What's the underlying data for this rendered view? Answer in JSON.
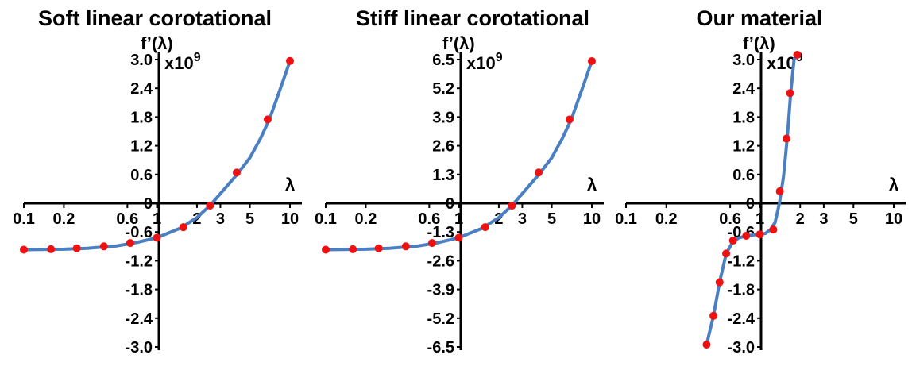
{
  "colors": {
    "curve": "#4a7fc1",
    "points": "#ee1111",
    "axes": "#000000"
  },
  "chart_data": [
    {
      "type": "line",
      "title": "Soft linear corotational",
      "xlabel": "λ",
      "ylabel": "f’(λ)",
      "y_multiplier": "x10",
      "y_multiplier_exp": "9",
      "x_scale": "log",
      "xlim": [
        0.1,
        10
      ],
      "ylim": [
        -3.0,
        3.0
      ],
      "x_ticks": [
        0.1,
        0.2,
        0.6,
        1,
        2,
        3,
        5,
        10
      ],
      "x_tick_labels": [
        "0.1",
        "0.2",
        "0.6",
        "1",
        "2",
        "3",
        "5",
        "10"
      ],
      "y_ticks": [
        3.0,
        2.4,
        1.8,
        1.2,
        0.6,
        0,
        -0.6,
        -1.2,
        -1.8,
        -2.4,
        -3.0
      ],
      "y_tick_labels": [
        "3.0",
        "2.4",
        "1.8",
        "1.2",
        "0.6",
        "0",
        "-0.6",
        "-1.2",
        "-1.8",
        "-2.4",
        "-3.0"
      ],
      "curve_x": [
        0.1,
        0.2,
        0.3,
        0.5,
        0.7,
        1,
        1.5,
        2,
        2.5,
        3,
        4,
        5,
        6,
        7,
        8,
        9,
        10
      ],
      "curve_y": [
        -0.97,
        -0.96,
        -0.94,
        -0.89,
        -0.82,
        -0.72,
        -0.52,
        -0.3,
        -0.05,
        0.2,
        0.6,
        0.95,
        1.35,
        1.75,
        2.2,
        2.6,
        2.97
      ],
      "points": [
        {
          "x": 0.1,
          "y": -0.97
        },
        {
          "x": 0.16,
          "y": -0.96
        },
        {
          "x": 0.25,
          "y": -0.94
        },
        {
          "x": 0.4,
          "y": -0.9
        },
        {
          "x": 0.63,
          "y": -0.83
        },
        {
          "x": 1.0,
          "y": -0.72
        },
        {
          "x": 1.58,
          "y": -0.5
        },
        {
          "x": 2.51,
          "y": -0.05
        },
        {
          "x": 3.98,
          "y": 0.64
        },
        {
          "x": 6.8,
          "y": 1.75
        },
        {
          "x": 10,
          "y": 2.97
        }
      ]
    },
    {
      "type": "line",
      "title": "Stiff linear corotational",
      "xlabel": "λ",
      "ylabel": "f’(λ)",
      "y_multiplier": "x10",
      "y_multiplier_exp": "9",
      "x_scale": "log",
      "xlim": [
        0.1,
        10
      ],
      "ylim": [
        -6.5,
        6.5
      ],
      "x_ticks": [
        0.1,
        0.2,
        0.6,
        1,
        2,
        3,
        5,
        10
      ],
      "x_tick_labels": [
        "0.1",
        "0.2",
        "0.6",
        "1",
        "2",
        "3",
        "5",
        "10"
      ],
      "y_ticks": [
        6.5,
        5.2,
        3.9,
        2.6,
        1.3,
        0,
        -1.3,
        -2.6,
        -3.9,
        -5.2,
        -6.5
      ],
      "y_tick_labels": [
        "6.5",
        "5.2",
        "3.9",
        "2.6",
        "1.3",
        "0",
        "-1.3",
        "-2.6",
        "-3.9",
        "-5.2",
        "-6.5"
      ],
      "curve_x": [
        0.1,
        0.2,
        0.3,
        0.5,
        0.7,
        1,
        1.5,
        2,
        2.5,
        3,
        4,
        5,
        6,
        7,
        8,
        9,
        10
      ],
      "curve_y": [
        -2.1,
        -2.08,
        -2.04,
        -1.93,
        -1.78,
        -1.56,
        -1.13,
        -0.65,
        -0.11,
        0.43,
        1.3,
        2.06,
        2.93,
        3.79,
        4.77,
        5.63,
        6.43
      ],
      "points": [
        {
          "x": 0.1,
          "y": -2.1
        },
        {
          "x": 0.16,
          "y": -2.08
        },
        {
          "x": 0.25,
          "y": -2.04
        },
        {
          "x": 0.4,
          "y": -1.95
        },
        {
          "x": 0.63,
          "y": -1.8
        },
        {
          "x": 1.0,
          "y": -1.56
        },
        {
          "x": 1.58,
          "y": -1.08
        },
        {
          "x": 2.51,
          "y": -0.11
        },
        {
          "x": 3.98,
          "y": 1.39
        },
        {
          "x": 6.8,
          "y": 3.79
        },
        {
          "x": 10,
          "y": 6.43
        }
      ]
    },
    {
      "type": "line",
      "title": "Our material",
      "xlabel": "λ",
      "ylabel": "f’(λ)",
      "y_multiplier": "x10",
      "y_multiplier_exp": "9",
      "x_scale": "log",
      "xlim": [
        0.1,
        10
      ],
      "ylim": [
        -3.0,
        3.0
      ],
      "x_ticks": [
        0.1,
        0.2,
        0.6,
        1,
        2,
        3,
        5,
        10
      ],
      "x_tick_labels": [
        "0.1",
        "0.2",
        "0.6",
        "1",
        "2",
        "3",
        "5",
        "10"
      ],
      "y_ticks": [
        3.0,
        2.4,
        1.8,
        1.2,
        0.6,
        0,
        -0.6,
        -1.2,
        -1.8,
        -2.4,
        -3.0
      ],
      "y_tick_labels": [
        "3.0",
        "2.4",
        "1.8",
        "1.2",
        "0.6",
        "0",
        "-0.6",
        "-1.2",
        "-1.8",
        "-2.4",
        "-3.0"
      ],
      "curve_x": [
        0.4,
        0.45,
        0.5,
        0.56,
        0.63,
        0.7,
        0.8,
        0.9,
        1.0,
        1.1,
        1.2,
        1.3,
        1.4,
        1.5,
        1.6,
        1.7,
        1.8,
        1.9
      ],
      "curve_y": [
        -2.95,
        -2.35,
        -1.65,
        -1.05,
        -0.8,
        -0.72,
        -0.68,
        -0.66,
        -0.65,
        -0.63,
        -0.55,
        -0.4,
        0.0,
        0.55,
        1.35,
        2.3,
        3.0,
        3.1
      ],
      "points": [
        {
          "x": 0.4,
          "y": -2.95
        },
        {
          "x": 0.45,
          "y": -2.35
        },
        {
          "x": 0.5,
          "y": -1.65
        },
        {
          "x": 0.56,
          "y": -1.05
        },
        {
          "x": 0.63,
          "y": -0.78
        },
        {
          "x": 0.79,
          "y": -0.68
        },
        {
          "x": 1.0,
          "y": -0.65
        },
        {
          "x": 1.26,
          "y": -0.55
        },
        {
          "x": 1.41,
          "y": 0.25
        },
        {
          "x": 1.58,
          "y": 1.35
        },
        {
          "x": 1.68,
          "y": 2.3
        },
        {
          "x": 1.9,
          "y": 3.1
        }
      ]
    }
  ]
}
